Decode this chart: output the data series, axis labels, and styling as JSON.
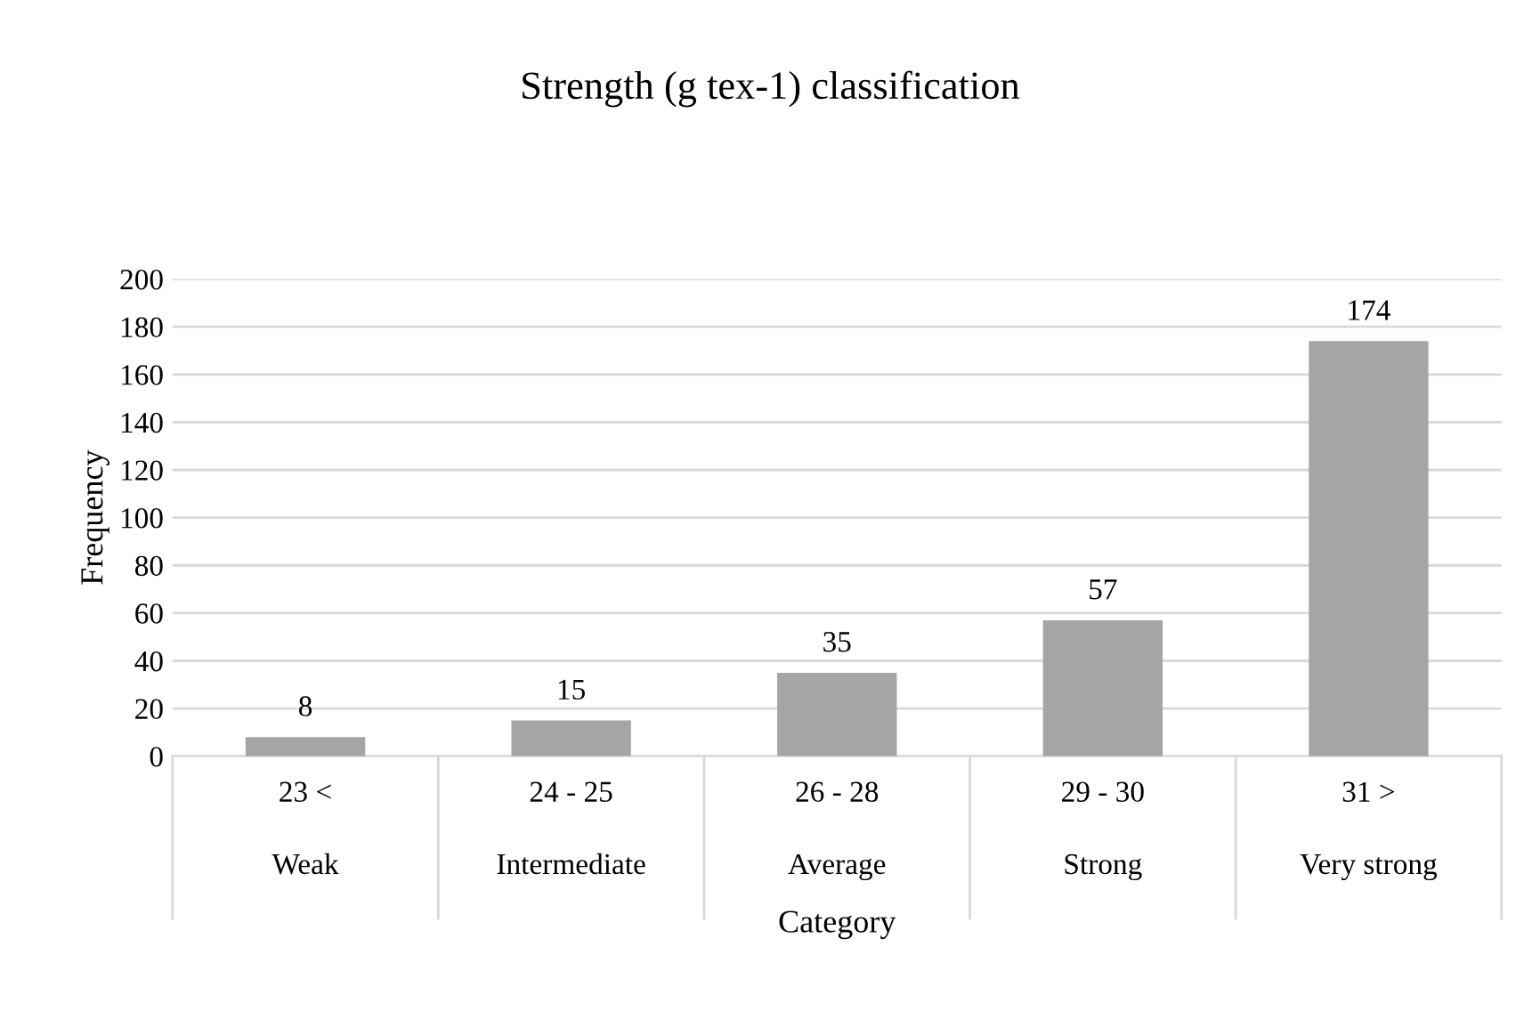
{
  "chart_data": {
    "type": "bar",
    "title": "Strength (g tex-1) classification",
    "xlabel": "Category",
    "ylabel": "Frequency",
    "categories": [
      "23 <\nWeak",
      "24 - 25\nIntermediate",
      "26 - 28\nAverage",
      "29 - 30\nStrong",
      "31 >\nVery strong"
    ],
    "values": [
      8,
      15,
      35,
      57,
      174
    ],
    "color": "#a5a5a5",
    "ylim": [
      0,
      200
    ],
    "yticks": [
      0,
      20,
      40,
      60,
      80,
      100,
      120,
      140,
      160,
      180,
      200
    ],
    "grid": "y",
    "data_labels": true,
    "legend": false
  }
}
